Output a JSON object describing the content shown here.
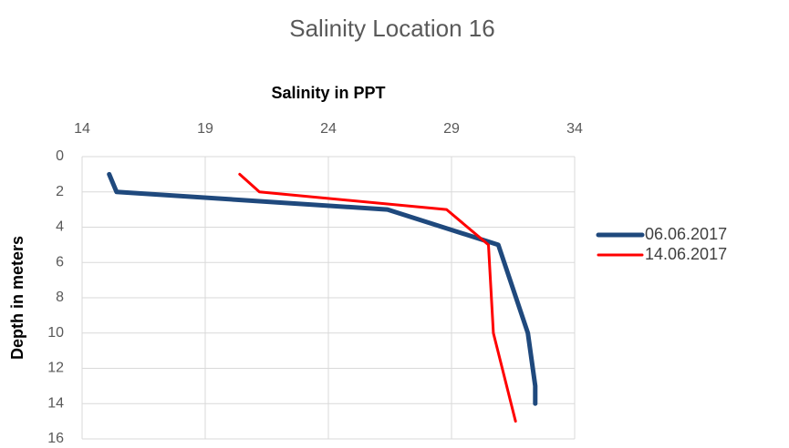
{
  "chart_data": {
    "type": "line",
    "title": "Salinity Location 16",
    "x_label": "Salinity in PPT",
    "y_label": "Depth in meters",
    "series": [
      {
        "name": "06.06.2017",
        "color": "#1f497d",
        "x": [
          15.1,
          15.4,
          26.4,
          30.9,
          32.1,
          32.4,
          32.4
        ],
        "y": [
          1,
          2,
          3,
          5,
          10,
          13,
          14
        ]
      },
      {
        "name": "14.06.2017",
        "color": "#ff0000",
        "x": [
          20.4,
          21.2,
          28.8,
          30.5,
          30.7,
          31.6
        ],
        "y": [
          1,
          2,
          3,
          5,
          10,
          15
        ]
      }
    ],
    "xlim": [
      14,
      34
    ],
    "xticks": [
      14,
      19,
      24,
      29,
      34
    ],
    "ylim": [
      0,
      16
    ],
    "yticks": [
      0,
      2,
      4,
      6,
      8,
      10,
      12,
      14,
      16
    ],
    "y_inverted": true,
    "x_axis_position": "top",
    "grid": true,
    "legend": "right"
  }
}
